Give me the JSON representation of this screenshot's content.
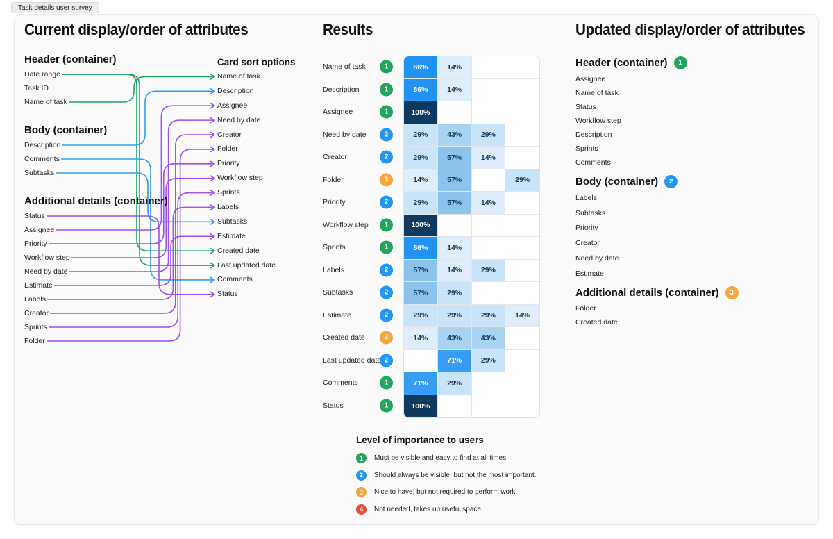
{
  "tab": {
    "label": "Task details user survey"
  },
  "colors": {
    "green": "#1da55e",
    "blue": "#2e9cf4",
    "purple": "#9d4df2",
    "orange": "#f6a63b",
    "red": "#e94b3c",
    "cell_100": "#0d3a5e",
    "cell_86": "#2193f3",
    "cell_71": "#359df3",
    "cell_57": "#8cc3ed",
    "cell_43": "#a9d3f3",
    "cell_29": "#c9e4f8",
    "cell_14": "#e0eefb"
  },
  "current": {
    "title": "Current display/order of attributes",
    "groups": [
      {
        "title": "Header (container)",
        "items": [
          {
            "id": "date-range",
            "label": "Date range"
          },
          {
            "id": "task-id",
            "label": "Task ID"
          },
          {
            "id": "name-of-task",
            "label": "Name of task"
          }
        ]
      },
      {
        "title": "Body (container)",
        "items": [
          {
            "id": "description",
            "label": "Description"
          },
          {
            "id": "comments",
            "label": "Comments"
          },
          {
            "id": "subtasks",
            "label": "Subtasks"
          }
        ]
      },
      {
        "title": "Additional details (container)",
        "items": [
          {
            "id": "status",
            "label": "Status"
          },
          {
            "id": "assignee",
            "label": "Assignee"
          },
          {
            "id": "priority",
            "label": "Priority"
          },
          {
            "id": "workflow-step",
            "label": "Workflow step"
          },
          {
            "id": "need-by-date",
            "label": "Need by date"
          },
          {
            "id": "estimate",
            "label": "Estimate"
          },
          {
            "id": "labels",
            "label": "Labels"
          },
          {
            "id": "creator",
            "label": "Creator"
          },
          {
            "id": "sprints",
            "label": "Sprints"
          },
          {
            "id": "folder",
            "label": "Folder"
          }
        ]
      }
    ]
  },
  "card_sort": {
    "title": "Card sort options",
    "options": [
      {
        "id": "name-of-task",
        "label": "Name of task",
        "color": "green"
      },
      {
        "id": "description",
        "label": "Description",
        "color": "blue"
      },
      {
        "id": "assignee",
        "label": "Assignee",
        "color": "purple"
      },
      {
        "id": "need-by-date",
        "label": "Need by date",
        "color": "purple"
      },
      {
        "id": "creator",
        "label": "Creator",
        "color": "purple"
      },
      {
        "id": "folder",
        "label": "Folder",
        "color": "purple"
      },
      {
        "id": "priority",
        "label": "Priority",
        "color": "purple"
      },
      {
        "id": "workflow-step",
        "label": "Workflow step",
        "color": "purple"
      },
      {
        "id": "sprints",
        "label": "Sprints",
        "color": "purple"
      },
      {
        "id": "labels",
        "label": "Labels",
        "color": "purple"
      },
      {
        "id": "subtasks",
        "label": "Subtasks",
        "color": "blue"
      },
      {
        "id": "estimate",
        "label": "Estimate",
        "color": "purple"
      },
      {
        "id": "created-date",
        "label": "Created date",
        "color": "green"
      },
      {
        "id": "last-updated-date",
        "label": "Last updated date",
        "color": "green"
      },
      {
        "id": "comments",
        "label": "Comments",
        "color": "blue"
      },
      {
        "id": "status",
        "label": "Status",
        "color": "purple"
      }
    ]
  },
  "connections": [
    {
      "from": "name-of-task",
      "to": "name-of-task",
      "color": "green"
    },
    {
      "from": "date-range",
      "to": "created-date",
      "color": "green"
    },
    {
      "from": "date-range",
      "to": "last-updated-date",
      "color": "green"
    },
    {
      "from": "description",
      "to": "description",
      "color": "blue"
    },
    {
      "from": "subtasks",
      "to": "subtasks",
      "color": "blue"
    },
    {
      "from": "comments",
      "to": "comments",
      "color": "blue"
    },
    {
      "from": "status",
      "to": "status",
      "color": "purple"
    },
    {
      "from": "assignee",
      "to": "assignee",
      "color": "purple"
    },
    {
      "from": "priority",
      "to": "priority",
      "color": "purple"
    },
    {
      "from": "workflow-step",
      "to": "workflow-step",
      "color": "purple"
    },
    {
      "from": "need-by-date",
      "to": "need-by-date",
      "color": "purple"
    },
    {
      "from": "estimate",
      "to": "estimate",
      "color": "purple"
    },
    {
      "from": "labels",
      "to": "labels",
      "color": "purple"
    },
    {
      "from": "creator",
      "to": "creator",
      "color": "purple"
    },
    {
      "from": "sprints",
      "to": "sprints",
      "color": "purple"
    },
    {
      "from": "folder",
      "to": "folder",
      "color": "purple"
    }
  ],
  "results": {
    "title": "Results",
    "rows": [
      {
        "label": "Name of task",
        "importance": 1,
        "values": [
          86,
          14,
          null,
          null
        ]
      },
      {
        "label": "Description",
        "importance": 1,
        "values": [
          86,
          14,
          null,
          null
        ]
      },
      {
        "label": "Assignee",
        "importance": 1,
        "values": [
          100,
          null,
          null,
          null
        ]
      },
      {
        "label": "Need by date",
        "importance": 2,
        "values": [
          29,
          43,
          29,
          null
        ]
      },
      {
        "label": "Creator",
        "importance": 2,
        "values": [
          29,
          57,
          14,
          null
        ]
      },
      {
        "label": "Folder",
        "importance": 3,
        "values": [
          14,
          57,
          null,
          29
        ]
      },
      {
        "label": "Priority",
        "importance": 2,
        "values": [
          29,
          57,
          14,
          null
        ]
      },
      {
        "label": "Workflow step",
        "importance": 1,
        "values": [
          100,
          null,
          null,
          null
        ]
      },
      {
        "label": "Sprints",
        "importance": 1,
        "values": [
          86,
          14,
          null,
          null
        ]
      },
      {
        "label": "Labels",
        "importance": 2,
        "values": [
          57,
          14,
          29,
          null
        ]
      },
      {
        "label": "Subtasks",
        "importance": 2,
        "values": [
          57,
          29,
          null,
          null
        ]
      },
      {
        "label": "Estimate",
        "importance": 2,
        "values": [
          29,
          29,
          29,
          14
        ]
      },
      {
        "label": "Created date",
        "importance": 3,
        "values": [
          14,
          43,
          43,
          null
        ]
      },
      {
        "label": "Last updated date",
        "importance": 2,
        "values": [
          null,
          71,
          29,
          null
        ]
      },
      {
        "label": "Comments",
        "importance": 1,
        "values": [
          71,
          29,
          null,
          null
        ]
      },
      {
        "label": "Status",
        "importance": 1,
        "values": [
          100,
          null,
          null,
          null
        ]
      }
    ]
  },
  "legend": {
    "title": "Level of importance to users",
    "items": [
      {
        "level": 1,
        "text": "Must be visible and easy to find at all times."
      },
      {
        "level": 2,
        "text": "Should always be visible, but not the most important."
      },
      {
        "level": 3,
        "text": "Nice to have, but not required to perform work."
      },
      {
        "level": 4,
        "text": "Not needed, takes up useful space."
      }
    ]
  },
  "updated": {
    "title": "Updated display/order of attributes",
    "sections": [
      {
        "title": "Header (container)",
        "importance": 1,
        "items": [
          "Assignee",
          "Name of task",
          "Status",
          "Workflow step",
          "Description",
          "Sprints",
          "Comments"
        ]
      },
      {
        "title": "Body (container)",
        "importance": 2,
        "items": [
          "Labels",
          "Subtasks",
          "Priority",
          "Creator",
          "Need by date",
          "Estimate"
        ]
      },
      {
        "title": "Additional details (container)",
        "importance": 3,
        "items": [
          "Folder",
          "Created date"
        ]
      }
    ]
  }
}
